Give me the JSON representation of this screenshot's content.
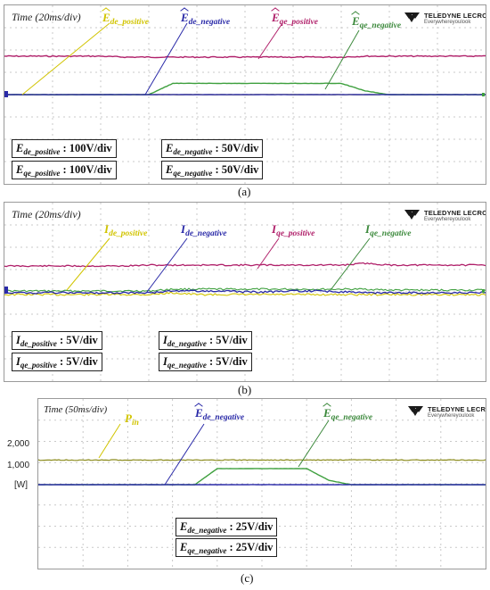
{
  "colors": {
    "de_positive": "#d1c400",
    "de_negative": "#2a2aa8",
    "qe_positive": "#b0206a",
    "qe_negative": "#3fa03f",
    "pin_trace": "#8a8a1a",
    "annot_green": "#3d8a3d"
  },
  "panels": [
    {
      "id": "a",
      "time_label": "Time (20ms/div)",
      "logo": {
        "brand": "TELEDYNE LECROY",
        "tag": "Everywhereyoulook"
      },
      "signals": [
        {
          "sym": "E",
          "sub": "de_positive",
          "hat": true,
          "color_key": "de_positive"
        },
        {
          "sym": "E",
          "sub": "de_negative",
          "hat": true,
          "color_key": "de_negative"
        },
        {
          "sym": "E",
          "sub": "qe_positive",
          "hat": true,
          "color_key": "qe_positive"
        },
        {
          "sym": "E",
          "sub": "qe_negative",
          "hat": true,
          "color_key": "annot_green"
        }
      ],
      "scales": [
        {
          "sym": "E",
          "sub": "de_positive",
          "value": " : 100V/div"
        },
        {
          "sym": "E",
          "sub": "de_negative",
          "value": " : 50V/div"
        },
        {
          "sym": "E",
          "sub": "qe_positive",
          "value": " : 100V/div"
        },
        {
          "sym": "E",
          "sub": "qe_negative",
          "value": " : 50V/div"
        }
      ],
      "caption": "(a)"
    },
    {
      "id": "b",
      "time_label": "Time (20ms/div)",
      "logo": {
        "brand": "TELEDYNE LECROY",
        "tag": "Everywhereyoulook"
      },
      "signals": [
        {
          "sym": "I",
          "sub": "de_positive",
          "hat": false,
          "color_key": "de_positive"
        },
        {
          "sym": "I",
          "sub": "de_negative",
          "hat": false,
          "color_key": "de_negative"
        },
        {
          "sym": "I",
          "sub": "qe_positive",
          "hat": false,
          "color_key": "qe_positive"
        },
        {
          "sym": "I",
          "sub": "qe_negative",
          "hat": false,
          "color_key": "annot_green"
        }
      ],
      "scales": [
        {
          "sym": "I",
          "sub": "de_positive",
          "value": " : 5V/div"
        },
        {
          "sym": "I",
          "sub": "de_negative",
          "value": " : 5V/div"
        },
        {
          "sym": "I",
          "sub": "qe_positive",
          "value": " : 5V/div"
        },
        {
          "sym": "I",
          "sub": "qe_negative",
          "value": " : 5V/div"
        }
      ],
      "caption": "(b)"
    },
    {
      "id": "c",
      "time_label": "Time (50ms/div)",
      "logo": {
        "brand": "TELEDYNE LECROY",
        "tag": "Everywhereyoulook"
      },
      "signals": [
        {
          "sym": "P",
          "sub": "in",
          "hat": false,
          "color_key": "de_positive"
        },
        {
          "sym": "E",
          "sub": "de_negative",
          "hat": true,
          "color_key": "de_negative"
        },
        {
          "sym": "E",
          "sub": "qe_negative",
          "hat": true,
          "color_key": "annot_green"
        }
      ],
      "scales": [
        {
          "sym": "E",
          "sub": "de_negative",
          "value": " : 25V/div"
        },
        {
          "sym": "E",
          "sub": "qe_negative",
          "value": " : 25V/div"
        }
      ],
      "yticks": [
        "2,000",
        "1,000",
        "[W]"
      ],
      "caption": "(c)"
    }
  ],
  "chart_data": [
    {
      "type": "line",
      "panel": "a",
      "x_label": "Time (20ms/div)",
      "grid": true,
      "series": [
        {
          "name": "Ê de_positive",
          "scale": "100V/div",
          "description_level": "flat",
          "values": [
            0,
            0,
            0,
            0,
            0,
            0,
            0,
            0,
            0,
            0,
            0,
            0,
            0,
            0,
            0,
            0,
            0,
            0,
            0,
            0,
            0
          ]
        },
        {
          "name": "Ê de_negative",
          "scale": "50V/div",
          "values": [
            0,
            0,
            0,
            0,
            0,
            0,
            0,
            0,
            0,
            0,
            0,
            0,
            0,
            0,
            0,
            0,
            0,
            0,
            0,
            0,
            0
          ]
        },
        {
          "name": "Ê qe_positive",
          "scale": "100V/div",
          "values": [
            2.05,
            2.05,
            2.05,
            2.05,
            2.05,
            2.0,
            2.0,
            2.0,
            2.0,
            2.0,
            2.0,
            2.0,
            2.0,
            2.0,
            2.0,
            2.05,
            2.05,
            2.05,
            2.05,
            2.05,
            2.05
          ]
        },
        {
          "name": "Ê qe_negative",
          "scale": "50V/div",
          "values": [
            0,
            0,
            0,
            0,
            0,
            0,
            0,
            0.6,
            0.6,
            0.6,
            0.6,
            0.6,
            0.6,
            0.6,
            0.6,
            0.2,
            0,
            0,
            0,
            0,
            0
          ]
        }
      ]
    },
    {
      "type": "line",
      "panel": "b",
      "x_label": "Time (20ms/div)",
      "grid": true,
      "series": [
        {
          "name": "I de_positive",
          "scale": "5V/div",
          "values": [
            0,
            0,
            0,
            0,
            0,
            0,
            0,
            0.1,
            0,
            0,
            0,
            0,
            0,
            0,
            0,
            0,
            0,
            0,
            0,
            0,
            0
          ]
        },
        {
          "name": "I de_negative",
          "scale": "5V/div",
          "values": [
            0,
            0,
            0,
            0,
            0,
            0,
            0,
            0.1,
            0.1,
            0.1,
            0.05,
            0.05,
            0.1,
            0.1,
            0.05,
            0,
            0,
            0,
            0,
            0,
            0
          ]
        },
        {
          "name": "I qe_positive",
          "scale": "5V/div",
          "values": [
            1.45,
            1.45,
            1.45,
            1.45,
            1.45,
            1.45,
            1.5,
            1.5,
            1.5,
            1.5,
            1.5,
            1.5,
            1.5,
            1.5,
            1.5,
            1.6,
            1.5,
            1.5,
            1.5,
            1.5,
            1.5
          ]
        },
        {
          "name": "I qe_negative",
          "scale": "5V/div",
          "values": [
            0,
            0,
            0,
            0,
            0,
            0,
            0,
            0.1,
            0.1,
            0.1,
            0.1,
            0.1,
            0.1,
            0.1,
            0.1,
            0.1,
            0.05,
            0.05,
            0.05,
            0.05,
            0.05
          ]
        }
      ]
    },
    {
      "type": "line",
      "panel": "c",
      "x_label": "Time (50ms/div)",
      "y_ticks": [
        "2,000",
        "1,000",
        "[W]"
      ],
      "grid": true,
      "series": [
        {
          "name": "P in",
          "unit": "W",
          "values": [
            1200,
            1200,
            1200,
            1200,
            1200,
            1200,
            1200,
            1200,
            1200,
            1200,
            1200,
            1200,
            1200,
            1200,
            1200,
            1200,
            1200,
            1200,
            1200,
            1200,
            1200
          ]
        },
        {
          "name": "Ê de_negative",
          "scale": "25V/div",
          "values": [
            0,
            0,
            0,
            0,
            0,
            0,
            0,
            0,
            0,
            0,
            0,
            0,
            0,
            0,
            0,
            0,
            0,
            0,
            0,
            0,
            0
          ]
        },
        {
          "name": "Ê qe_negative",
          "scale": "25V/div",
          "values": [
            0,
            0,
            0,
            0,
            0,
            0,
            0,
            0,
            0.75,
            0.75,
            0.75,
            0.75,
            0.75,
            0.2,
            0,
            0,
            0,
            0,
            0,
            0,
            0
          ]
        }
      ]
    }
  ]
}
